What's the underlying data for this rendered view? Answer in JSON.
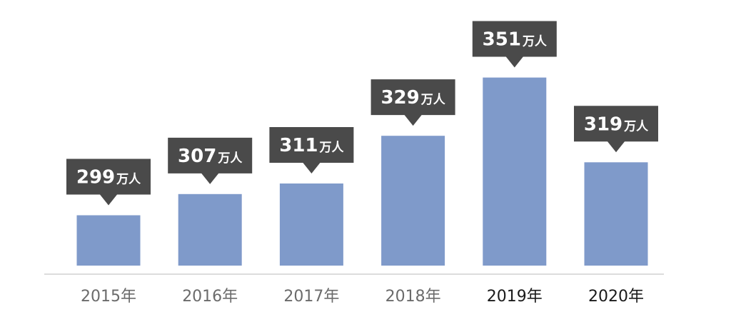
{
  "chart_data": {
    "type": "bar",
    "title": "",
    "xlabel": "",
    "ylabel": "",
    "categories": [
      "2015年",
      "2016年",
      "2017年",
      "2018年",
      "2019年",
      "2020年"
    ],
    "values": [
      299,
      307,
      311,
      329,
      351,
      319
    ],
    "value_unit": "万人",
    "data_labels": [
      "299",
      "307",
      "311",
      "329",
      "351",
      "319"
    ],
    "ylim": [
      280,
      356
    ],
    "grid": false,
    "legend": "none",
    "colors": {
      "bar": "#7f9aca",
      "callout": "#4a4a4a",
      "callout_text": "#ffffff",
      "axis": "#d0d0d0",
      "tick_label_default": "#6b6b6b",
      "tick_label_emphasis": "#1a1a1a"
    },
    "emphasized_categories": [
      "2019年",
      "2020年"
    ]
  }
}
